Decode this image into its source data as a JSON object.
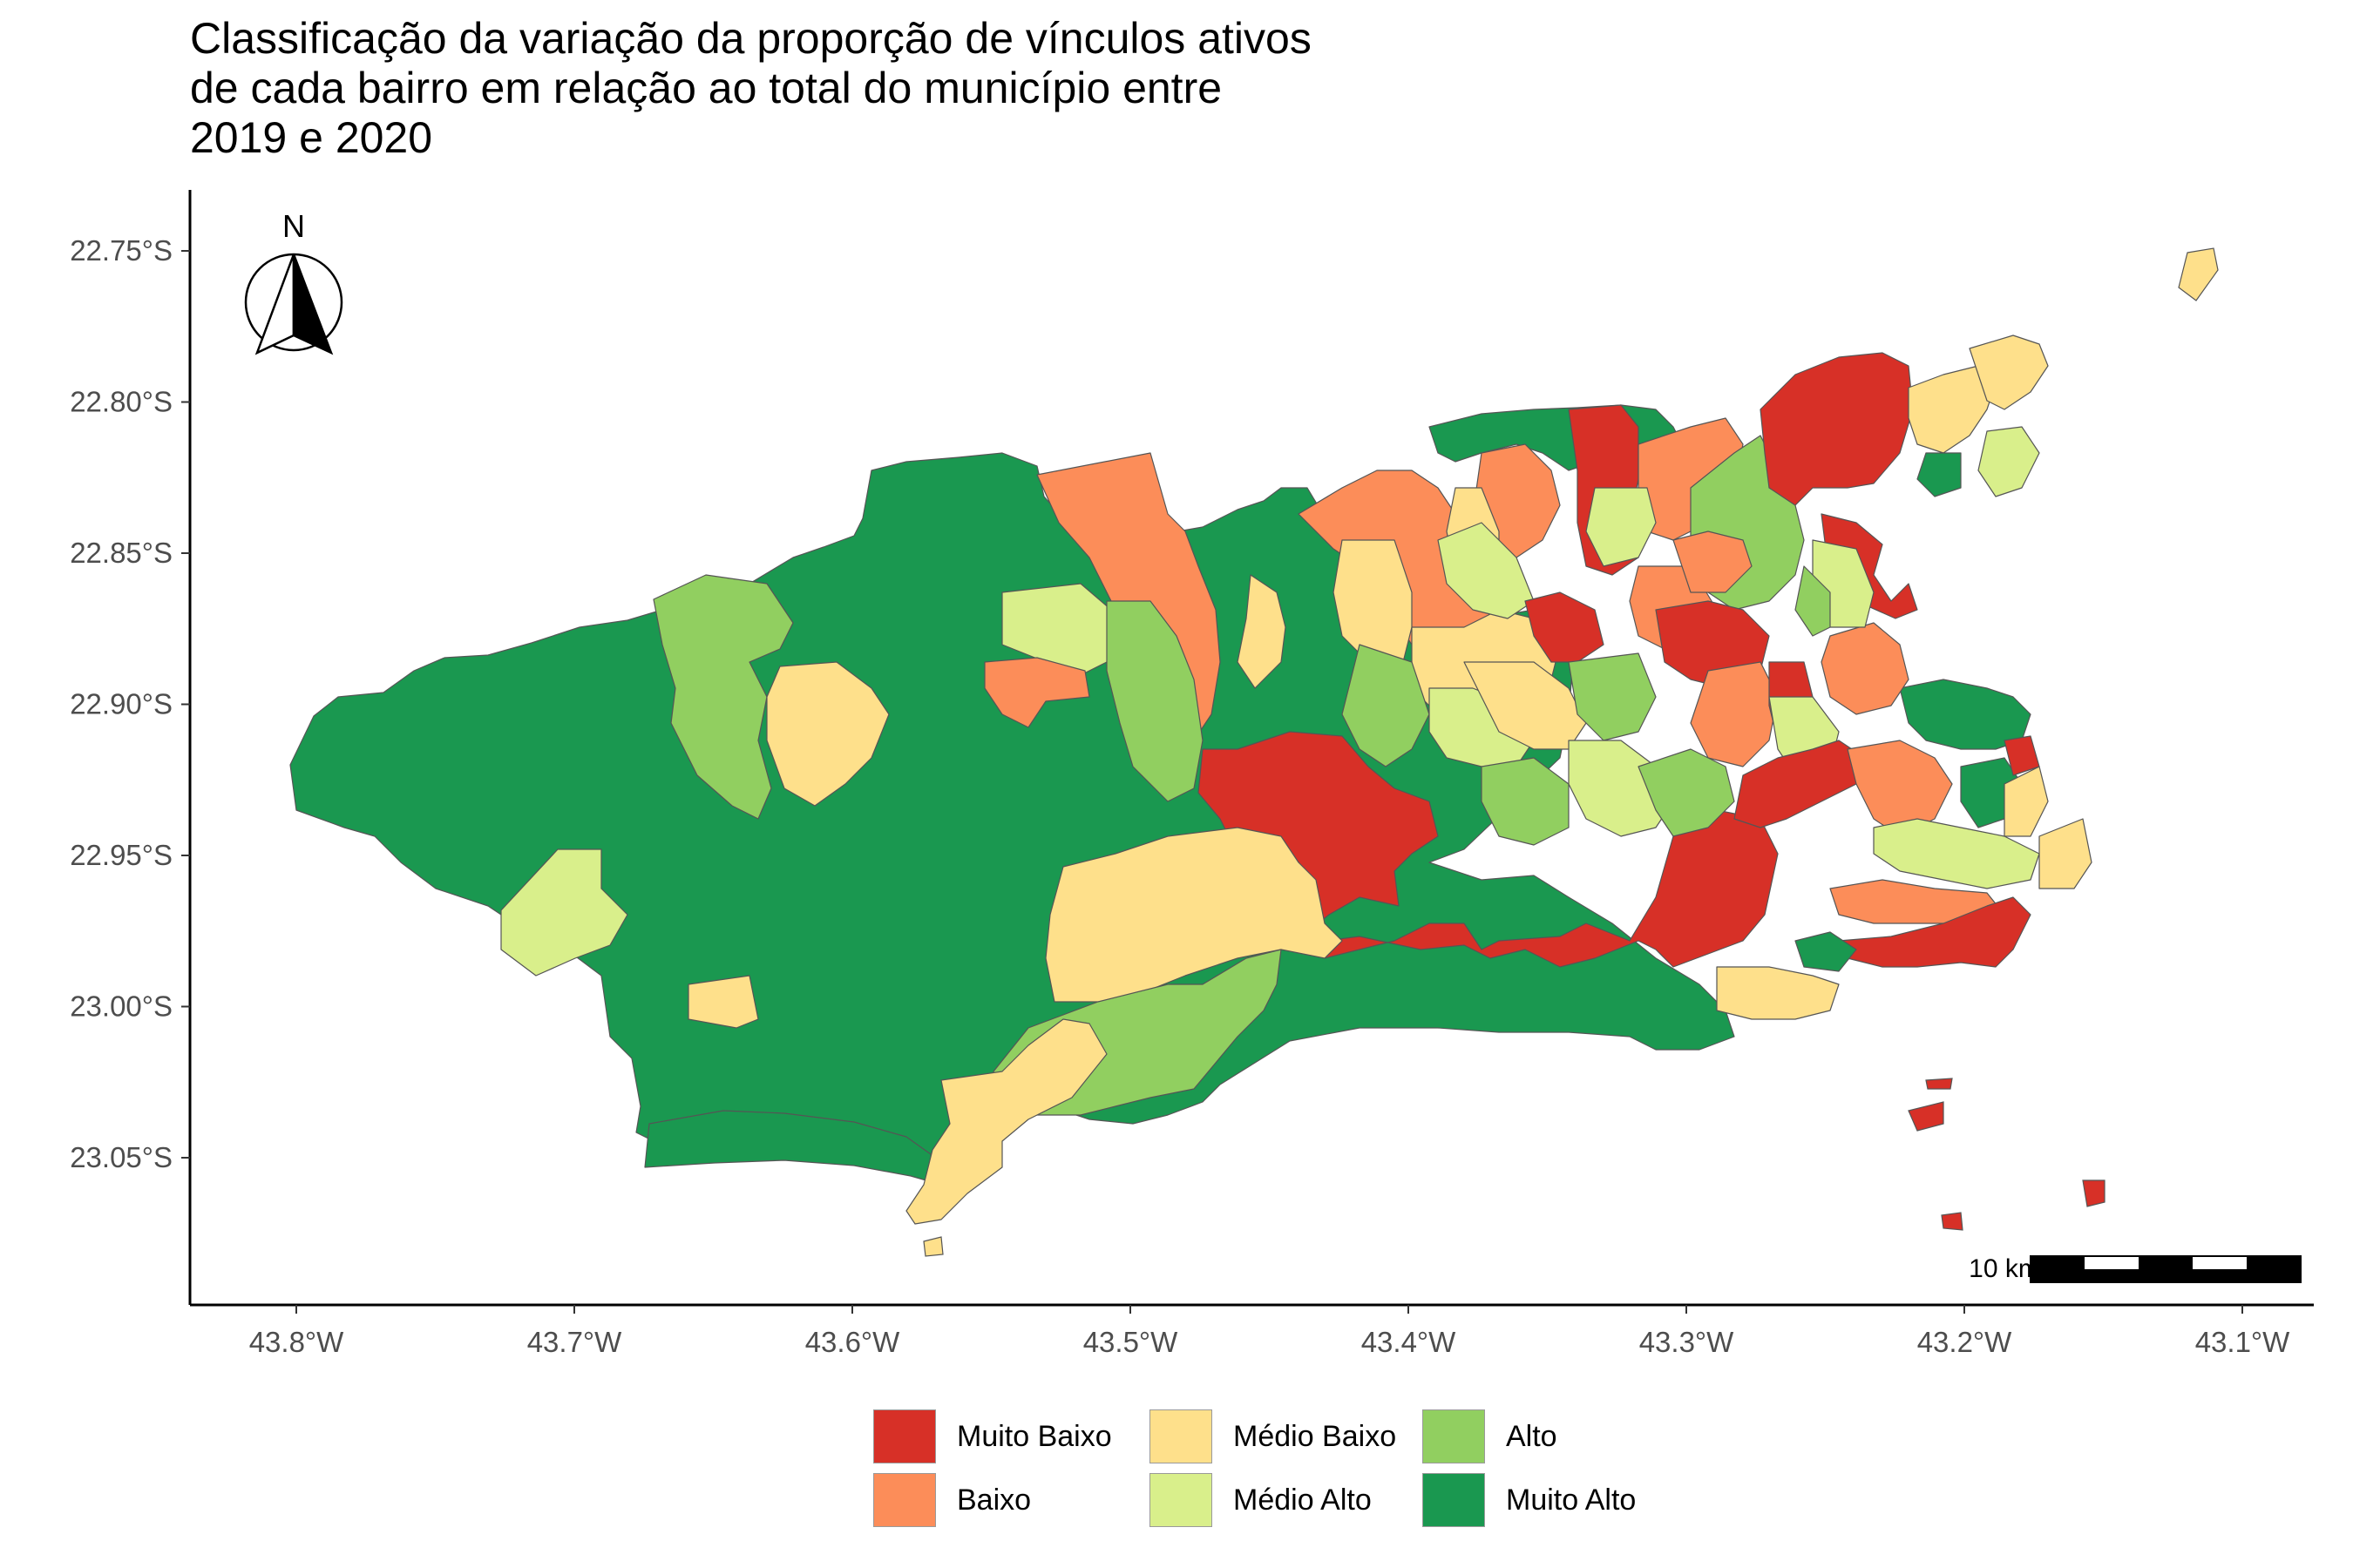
{
  "title": {
    "line1": "Classificação da variação da proporção de vínculos ativos",
    "line2": "de cada bairro em relação ao total do município entre",
    "line3": "2019 e 2020"
  },
  "colors": {
    "muito_baixo": "#d73027",
    "baixo": "#fc8d59",
    "medio_baixo": "#fee08b",
    "medio_alto": "#d9ef8b",
    "alto": "#91cf60",
    "muito_alto": "#1a9850"
  },
  "north_arrow": {
    "label": "N"
  },
  "scale_bar": {
    "label": "10 km"
  },
  "chart_data": {
    "type": "choropleth",
    "xlim": [
      -43.83,
      -43.07
    ],
    "ylim": [
      -23.1,
      -22.73
    ],
    "y_ticks": [
      {
        "value": -22.75,
        "label": "22.75°S"
      },
      {
        "value": -22.8,
        "label": "22.80°S"
      },
      {
        "value": -22.85,
        "label": "22.85°S"
      },
      {
        "value": -22.9,
        "label": "22.90°S"
      },
      {
        "value": -22.95,
        "label": "22.95°S"
      },
      {
        "value": -23.0,
        "label": "23.00°S"
      },
      {
        "value": -23.05,
        "label": "23.05°S"
      }
    ],
    "x_ticks": [
      {
        "value": -43.8,
        "label": "43.8°W"
      },
      {
        "value": -43.7,
        "label": "43.7°W"
      },
      {
        "value": -43.6,
        "label": "43.6°W"
      },
      {
        "value": -43.5,
        "label": "43.5°W"
      },
      {
        "value": -43.4,
        "label": "43.4°W"
      },
      {
        "value": -43.3,
        "label": "43.3°W"
      },
      {
        "value": -43.2,
        "label": "43.2°W"
      },
      {
        "value": -43.1,
        "label": "43.1°W"
      }
    ],
    "legend": [
      {
        "key": "muito_baixo",
        "label": "Muito Baixo"
      },
      {
        "key": "baixo",
        "label": "Baixo"
      },
      {
        "key": "medio_baixo",
        "label": "Médio Baixo"
      },
      {
        "key": "medio_alto",
        "label": "Médio Alto"
      },
      {
        "key": "alto",
        "label": "Alto"
      },
      {
        "key": "muito_alto",
        "label": "Muito Alto"
      }
    ],
    "grid": false,
    "legend_position": "bottom"
  }
}
